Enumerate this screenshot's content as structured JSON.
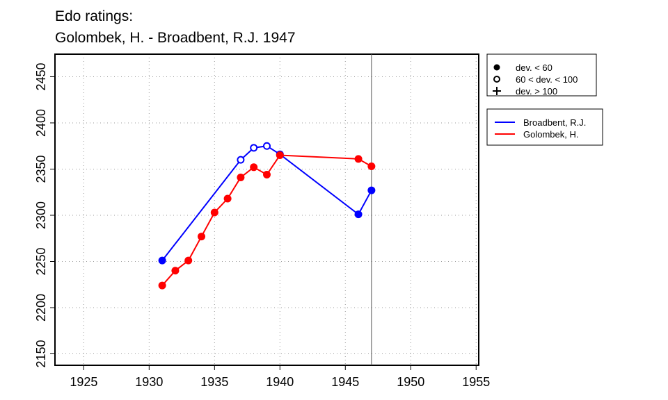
{
  "chart_data": {
    "type": "line",
    "title": "Edo ratings:",
    "subtitle": "Golombek, H. - Broadbent, R.J. 1947",
    "xlim": [
      1922.8,
      1955.2
    ],
    "ylim": [
      2137.6,
      2474.4
    ],
    "xticks": [
      1925,
      1930,
      1935,
      1940,
      1945,
      1950,
      1955
    ],
    "yticks": [
      2150,
      2200,
      2250,
      2300,
      2350,
      2400,
      2450
    ],
    "grid": true,
    "vline": 1947,
    "marker_legend": [
      "dev. < 60",
      "60 < dev. < 100",
      "dev. > 100"
    ],
    "series": [
      {
        "name": "Broadbent, R.J.",
        "color": "#0000ff",
        "x": [
          1931,
          1937,
          1938,
          1939,
          1940,
          1946,
          1947
        ],
        "values": [
          2251,
          2360,
          2373,
          2375,
          2366,
          2301,
          2327
        ],
        "point_styles": [
          "filled",
          "open",
          "open",
          "open",
          "filled",
          "filled",
          "filled"
        ]
      },
      {
        "name": "Golombek, H.",
        "color": "#ff0000",
        "x": [
          1931,
          1932,
          1933,
          1934,
          1935,
          1936,
          1937,
          1938,
          1939,
          1940,
          1946,
          1947
        ],
        "values": [
          2224,
          2240,
          2251,
          2277,
          2303,
          2318,
          2341,
          2352,
          2344,
          2365,
          2361,
          2353
        ],
        "point_styles": [
          "filled",
          "filled",
          "filled",
          "filled",
          "filled",
          "filled",
          "filled",
          "filled",
          "filled",
          "filled",
          "filled",
          "filled"
        ]
      }
    ]
  }
}
